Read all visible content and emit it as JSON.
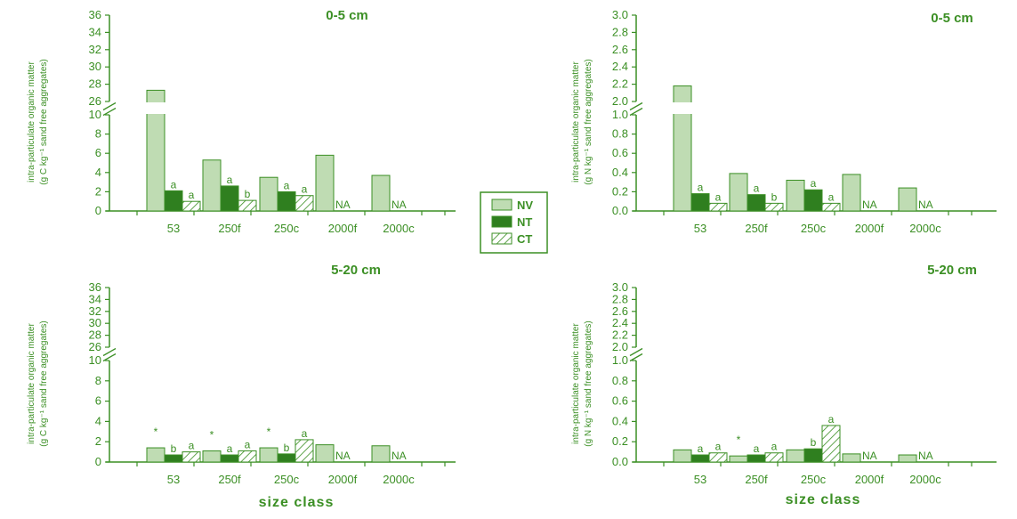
{
  "colors": {
    "accent": "#3b8f24",
    "NV": "#bfdcb3",
    "NT": "#2f7f1f",
    "CT": "#ffffff"
  },
  "legend": [
    "NV",
    "NT",
    "CT"
  ],
  "x_axis_label": "size class",
  "chart_data": [
    {
      "type": "bar",
      "title": "0-5 cm",
      "ylabel": [
        "intra-particulate organic matter",
        "(g C kg⁻¹ sand free aggregates)"
      ],
      "categories": [
        "53",
        "250f",
        "250c",
        "2000f",
        "2000c"
      ],
      "lower_ticks": [
        "0",
        "2",
        "4",
        "6",
        "8",
        "10"
      ],
      "upper_ticks": [
        "26",
        "28",
        "30",
        "32",
        "34",
        "36"
      ],
      "series": [
        {
          "name": "NV",
          "values": [
            27.3,
            5.3,
            3.5,
            5.8,
            3.7
          ]
        },
        {
          "name": "NT",
          "values": [
            2.1,
            2.6,
            2.0,
            null,
            null
          ]
        },
        {
          "name": "CT",
          "values": [
            1.0,
            1.1,
            1.6,
            null,
            null
          ]
        }
      ],
      "annotations": [
        {
          "category": "53",
          "series": "NT",
          "text": "a"
        },
        {
          "category": "53",
          "series": "CT",
          "text": "a"
        },
        {
          "category": "250f",
          "series": "NT",
          "text": "a"
        },
        {
          "category": "250f",
          "series": "CT",
          "text": "b"
        },
        {
          "category": "250c",
          "series": "NT",
          "text": "a"
        },
        {
          "category": "250c",
          "series": "CT",
          "text": "a"
        },
        {
          "category": "2000f",
          "series": "NT",
          "text": "NA"
        },
        {
          "category": "2000c",
          "series": "NT",
          "text": "NA"
        }
      ]
    },
    {
      "type": "bar",
      "title": "0-5 cm",
      "ylabel": [
        "intra-particulate organic matter",
        "(g N kg⁻¹ sand free aggregates)"
      ],
      "categories": [
        "53",
        "250f",
        "250c",
        "2000f",
        "2000c"
      ],
      "lower_ticks": [
        "0.0",
        "0.2",
        "0.4",
        "0.6",
        "0.8",
        "1.0"
      ],
      "upper_ticks": [
        "2.0",
        "2.2",
        "2.4",
        "2.6",
        "2.8",
        "3.0"
      ],
      "series": [
        {
          "name": "NV",
          "values": [
            2.18,
            0.39,
            0.32,
            0.38,
            0.24
          ]
        },
        {
          "name": "NT",
          "values": [
            0.18,
            0.17,
            0.22,
            null,
            null
          ]
        },
        {
          "name": "CT",
          "values": [
            0.08,
            0.08,
            0.08,
            null,
            null
          ]
        }
      ],
      "annotations": [
        {
          "category": "53",
          "series": "NT",
          "text": "a"
        },
        {
          "category": "53",
          "series": "CT",
          "text": "a"
        },
        {
          "category": "250f",
          "series": "NT",
          "text": "a"
        },
        {
          "category": "250f",
          "series": "CT",
          "text": "b"
        },
        {
          "category": "250c",
          "series": "NT",
          "text": "a"
        },
        {
          "category": "250c",
          "series": "CT",
          "text": "a"
        },
        {
          "category": "2000f",
          "series": "NT",
          "text": "NA"
        },
        {
          "category": "2000c",
          "series": "NT",
          "text": "NA"
        }
      ]
    },
    {
      "type": "bar",
      "title": "5-20 cm",
      "ylabel": [
        "intra-particulate organic matter",
        "(g C kg⁻¹ sand free aggregates)"
      ],
      "categories": [
        "53",
        "250f",
        "250c",
        "2000f",
        "2000c"
      ],
      "lower_ticks": [
        "0",
        "2",
        "4",
        "6",
        "8",
        "10"
      ],
      "upper_ticks": [
        "26",
        "28",
        "30",
        "32",
        "34",
        "36"
      ],
      "series": [
        {
          "name": "NV",
          "values": [
            1.4,
            1.1,
            1.4,
            1.7,
            1.6
          ]
        },
        {
          "name": "NT",
          "values": [
            0.7,
            0.7,
            0.8,
            null,
            null
          ]
        },
        {
          "name": "CT",
          "values": [
            1.0,
            1.1,
            2.2,
            null,
            null
          ]
        }
      ],
      "annotations": [
        {
          "category": "53",
          "series": "NV",
          "text": "*"
        },
        {
          "category": "53",
          "series": "NT",
          "text": "b"
        },
        {
          "category": "53",
          "series": "CT",
          "text": "a"
        },
        {
          "category": "250f",
          "series": "NV",
          "text": "*"
        },
        {
          "category": "250f",
          "series": "NT",
          "text": "a"
        },
        {
          "category": "250f",
          "series": "CT",
          "text": "a"
        },
        {
          "category": "250c",
          "series": "NV",
          "text": "*"
        },
        {
          "category": "250c",
          "series": "NT",
          "text": "b"
        },
        {
          "category": "250c",
          "series": "CT",
          "text": "a"
        },
        {
          "category": "2000f",
          "series": "NT",
          "text": "NA"
        },
        {
          "category": "2000c",
          "series": "NT",
          "text": "NA"
        }
      ]
    },
    {
      "type": "bar",
      "title": "5-20 cm",
      "ylabel": [
        "intra-particulate organic matter",
        "(g N kg⁻¹ sand free aggregates)"
      ],
      "categories": [
        "53",
        "250f",
        "250c",
        "2000f",
        "2000c"
      ],
      "lower_ticks": [
        "0.0",
        "0.2",
        "0.4",
        "0.6",
        "0.8",
        "1.0"
      ],
      "upper_ticks": [
        "2.0",
        "2.2",
        "2.4",
        "2.6",
        "2.8",
        "3.0"
      ],
      "series": [
        {
          "name": "NV",
          "values": [
            0.12,
            0.06,
            0.12,
            0.08,
            0.07
          ]
        },
        {
          "name": "NT",
          "values": [
            0.07,
            0.07,
            0.13,
            null,
            null
          ]
        },
        {
          "name": "CT",
          "values": [
            0.09,
            0.09,
            0.36,
            null,
            null
          ]
        }
      ],
      "annotations": [
        {
          "category": "53",
          "series": "NT",
          "text": "a"
        },
        {
          "category": "53",
          "series": "CT",
          "text": "a"
        },
        {
          "category": "250f",
          "series": "NV",
          "text": "*"
        },
        {
          "category": "250f",
          "series": "NT",
          "text": "a"
        },
        {
          "category": "250f",
          "series": "CT",
          "text": "a"
        },
        {
          "category": "250c",
          "series": "NT",
          "text": "b"
        },
        {
          "category": "250c",
          "series": "CT",
          "text": "a"
        },
        {
          "category": "2000f",
          "series": "NT",
          "text": "NA"
        },
        {
          "category": "2000c",
          "series": "NT",
          "text": "NA"
        }
      ]
    }
  ]
}
